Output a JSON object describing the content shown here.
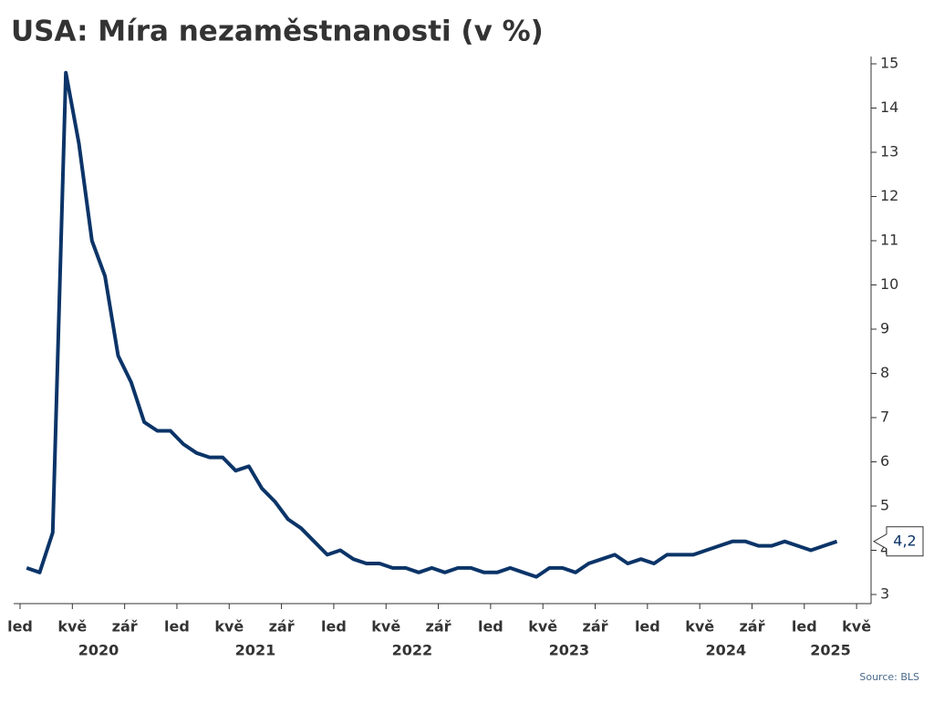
{
  "chart_data": {
    "type": "line",
    "title": "USA: Míra nezaměstnanosti (v %)",
    "source": "Source: BLS",
    "x": [
      "2020-01",
      "2020-02",
      "2020-03",
      "2020-04",
      "2020-05",
      "2020-06",
      "2020-07",
      "2020-08",
      "2020-09",
      "2020-10",
      "2020-11",
      "2020-12",
      "2021-01",
      "2021-02",
      "2021-03",
      "2021-04",
      "2021-05",
      "2021-06",
      "2021-07",
      "2021-08",
      "2021-09",
      "2021-10",
      "2021-11",
      "2021-12",
      "2022-01",
      "2022-02",
      "2022-03",
      "2022-04",
      "2022-05",
      "2022-06",
      "2022-07",
      "2022-08",
      "2022-09",
      "2022-10",
      "2022-11",
      "2022-12",
      "2023-01",
      "2023-02",
      "2023-03",
      "2023-04",
      "2023-05",
      "2023-06",
      "2023-07",
      "2023-08",
      "2023-09",
      "2023-10",
      "2023-11",
      "2023-12",
      "2024-01",
      "2024-02",
      "2024-03",
      "2024-04",
      "2024-05",
      "2024-06",
      "2024-07",
      "2024-08",
      "2024-09",
      "2024-10",
      "2024-11",
      "2024-12",
      "2025-01",
      "2025-02",
      "2025-03"
    ],
    "series": [
      {
        "name": "Míra nezaměstnanosti",
        "color": "#0b3468",
        "values": [
          3.6,
          3.5,
          4.4,
          14.8,
          13.2,
          11.0,
          10.2,
          8.4,
          7.8,
          6.9,
          6.7,
          6.7,
          6.4,
          6.2,
          6.1,
          6.1,
          5.8,
          5.9,
          5.4,
          5.1,
          4.7,
          4.5,
          4.2,
          3.9,
          4.0,
          3.8,
          3.7,
          3.7,
          3.6,
          3.6,
          3.5,
          3.6,
          3.5,
          3.6,
          3.6,
          3.5,
          3.5,
          3.6,
          3.5,
          3.4,
          3.6,
          3.6,
          3.5,
          3.7,
          3.8,
          3.9,
          3.7,
          3.8,
          3.7,
          3.9,
          3.9,
          3.9,
          4.0,
          4.1,
          4.2,
          4.2,
          4.1,
          4.1,
          4.2,
          4.1,
          4.0,
          4.1,
          4.2
        ],
        "last_value_label": "4,2"
      }
    ],
    "ylim": [
      3,
      15
    ],
    "yticks": [
      3,
      4,
      5,
      6,
      7,
      8,
      9,
      10,
      11,
      12,
      13,
      14,
      15
    ],
    "y_axis_side": "right",
    "xticks": [
      {
        "value": "2020-01",
        "label": "led"
      },
      {
        "value": "2020-05",
        "label": "kvě"
      },
      {
        "value": "2020-09",
        "label": "zář"
      },
      {
        "value": "2021-01",
        "label": "led"
      },
      {
        "value": "2021-05",
        "label": "kvě"
      },
      {
        "value": "2021-09",
        "label": "zář"
      },
      {
        "value": "2022-01",
        "label": "led"
      },
      {
        "value": "2022-05",
        "label": "kvě"
      },
      {
        "value": "2022-09",
        "label": "zář"
      },
      {
        "value": "2023-01",
        "label": "led"
      },
      {
        "value": "2023-05",
        "label": "kvě"
      },
      {
        "value": "2023-09",
        "label": "zář"
      },
      {
        "value": "2024-01",
        "label": "led"
      },
      {
        "value": "2024-05",
        "label": "kvě"
      },
      {
        "value": "2024-09",
        "label": "zář"
      },
      {
        "value": "2025-01",
        "label": "led"
      },
      {
        "value": "2025-05",
        "label": "kvě"
      }
    ],
    "years": [
      "2020",
      "2021",
      "2022",
      "2023",
      "2024",
      "2025"
    ],
    "grid": false
  }
}
